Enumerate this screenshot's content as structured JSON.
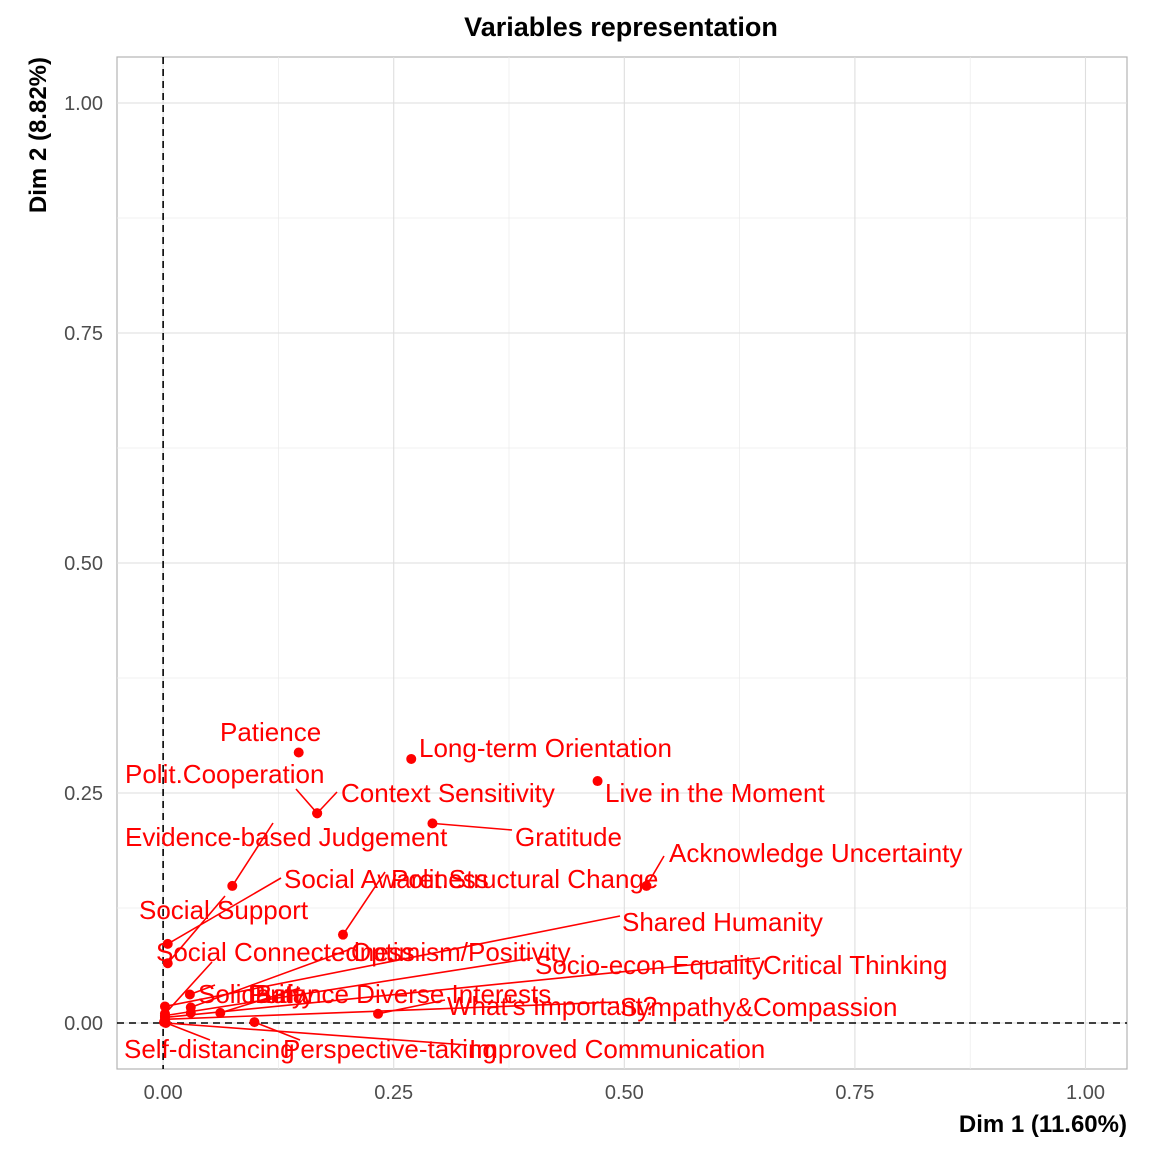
{
  "chart_data": {
    "type": "scatter",
    "title": "Variables representation",
    "xlabel": "Dim 1 (11.60%)",
    "ylabel": "Dim 2 (8.82%)",
    "xlim": [
      -0.05,
      1.045
    ],
    "ylim": [
      -0.05,
      1.05
    ],
    "xticks": [
      "0.00",
      "0.25",
      "0.50",
      "0.75",
      "1.00"
    ],
    "yticks": [
      "0.00",
      "0.25",
      "0.50",
      "0.75",
      "1.00"
    ],
    "grid": true,
    "reference_lines": {
      "x": 0,
      "y": 0,
      "style": "dashed"
    },
    "point_color": "#ff0000",
    "points": [
      {
        "name": "Patience",
        "x": 0.147,
        "y": 0.294
      },
      {
        "name": "Long-term Orientation",
        "x": 0.269,
        "y": 0.287
      },
      {
        "name": "Live in the Moment",
        "x": 0.471,
        "y": 0.263
      },
      {
        "name": "Polit.Cooperation",
        "x": 0.167,
        "y": 0.228
      },
      {
        "name": "Context Sensitivity",
        "x": 0.167,
        "y": 0.228
      },
      {
        "name": "Gratitude",
        "x": 0.292,
        "y": 0.217
      },
      {
        "name": "Evidence-based Judgement",
        "x": 0.075,
        "y": 0.149
      },
      {
        "name": "Acknowledge Uncertainty",
        "x": 0.524,
        "y": 0.149
      },
      {
        "name": "Social Awareness",
        "x": 0.005,
        "y": 0.086
      },
      {
        "name": "Polit.Structural Change",
        "x": 0.195,
        "y": 0.096
      },
      {
        "name": "Social Support",
        "x": 0.005,
        "y": 0.065
      },
      {
        "name": "Shared Humanity",
        "x": 0.002,
        "y": 0.018
      },
      {
        "name": "Social Connectedness",
        "x": 0.002,
        "y": 0.01
      },
      {
        "name": "Optimism/Positivity",
        "x": 0.03,
        "y": 0.017
      },
      {
        "name": "Socio-econ Equality",
        "x": 0.002,
        "y": 0.008
      },
      {
        "name": "Critical Thinking",
        "x": 0.002,
        "y": 0.006
      },
      {
        "name": "Solidarity",
        "x": 0.029,
        "y": 0.031
      },
      {
        "name": "Purity",
        "x": 0.03,
        "y": 0.011
      },
      {
        "name": "Balance Diverse Interests",
        "x": 0.062,
        "y": 0.011
      },
      {
        "name": "What's Important?",
        "x": 0.233,
        "y": 0.01
      },
      {
        "name": "Sympathy&Compassion",
        "x": 0.002,
        "y": 0.004
      },
      {
        "name": "Self-distancing",
        "x": 0.001,
        "y": 0.001
      },
      {
        "name": "Perspective-taking",
        "x": 0.099,
        "y": 0.001
      },
      {
        "name": "Improved Communication",
        "x": 0.003,
        "y": 0.0
      }
    ]
  }
}
